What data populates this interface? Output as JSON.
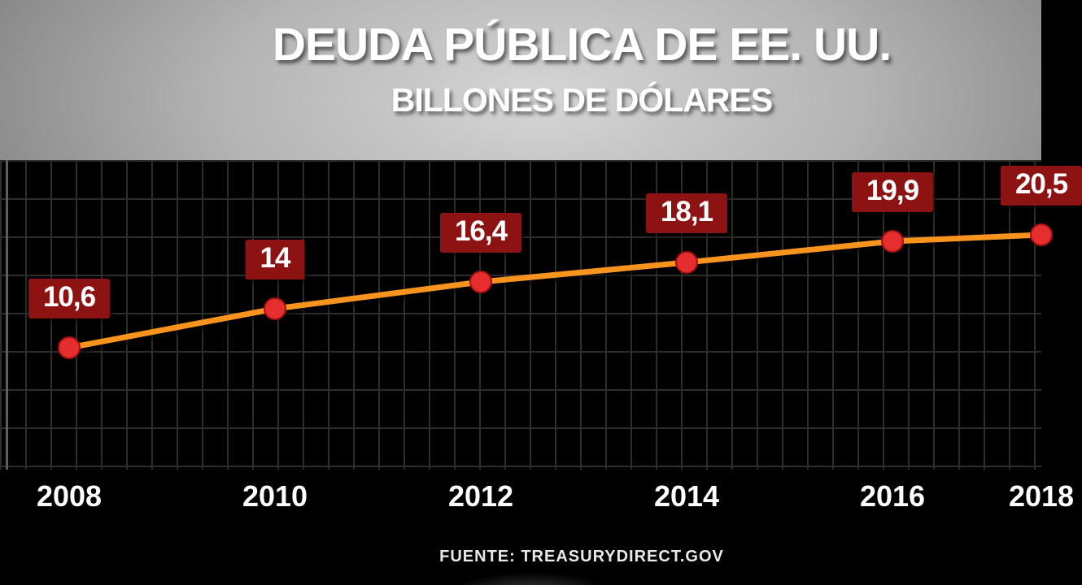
{
  "header": {
    "title": "DEUDA PÚBLICA DE EE. UU.",
    "subtitle": "BILLONES DE DÓLARES"
  },
  "footer": {
    "source": "FUENTE: TREASURYDIRECT.GOV"
  },
  "chart_data": {
    "type": "line",
    "title": "DEUDA PÚBLICA DE EE. UU.",
    "subtitle": "BILLONES DE DÓLARES",
    "categories": [
      "2008",
      "2010",
      "2012",
      "2014",
      "2016",
      "2018"
    ],
    "values": [
      10.6,
      14,
      16.4,
      18.1,
      19.9,
      20.5
    ],
    "point_labels": [
      "10,6",
      "14",
      "16,4",
      "18,1",
      "19,9",
      "20,5"
    ],
    "source": "FUENTE: TREASURYDIRECT.GOV",
    "ylim": [
      0,
      27
    ],
    "grid": true,
    "legend": false,
    "clipped_right_edge": true,
    "line_color": "#f8941e",
    "point_color": "#e62e2e",
    "point_stroke_color": "#a01010",
    "label_bg_color": "#8d1212",
    "label_text_color": "#ffffff"
  }
}
